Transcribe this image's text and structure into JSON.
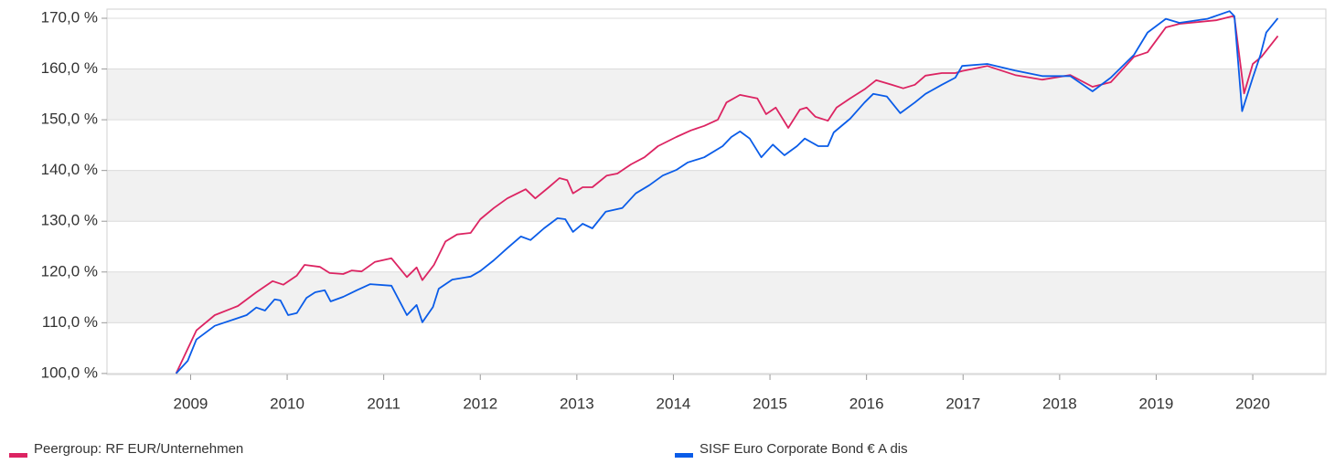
{
  "chart_data": {
    "type": "line",
    "xlim": [
      2008.134,
      2020.757
    ],
    "xticks": [
      2009,
      2010,
      2011,
      2012,
      2013,
      2014,
      2015,
      2016,
      2017,
      2018,
      2019,
      2020
    ],
    "ylim": [
      99.8,
      171.8
    ],
    "yticks": [
      {
        "value": 100,
        "label": "100,0 %"
      },
      {
        "value": 110,
        "label": "110,0 %"
      },
      {
        "value": 120,
        "label": "120,0 %"
      },
      {
        "value": 130,
        "label": "130,0 %"
      },
      {
        "value": 140,
        "label": "140,0 %"
      },
      {
        "value": 150,
        "label": "150,0 %"
      },
      {
        "value": 160,
        "label": "160,0 %"
      },
      {
        "value": 170,
        "label": "170,0 %"
      }
    ],
    "grid": "alternating",
    "legend": "bottom",
    "series": [
      {
        "name": "Peergroup: RF EUR/Unternehmen",
        "color": "#dc2462",
        "x": [
          2008.85,
          2009.06,
          2009.25,
          2009.49,
          2009.68,
          2009.85,
          2009.96,
          2010.1,
          2010.18,
          2010.34,
          2010.44,
          2010.58,
          2010.67,
          2010.77,
          2010.91,
          2011.08,
          2011.24,
          2011.34,
          2011.4,
          2011.52,
          2011.64,
          2011.76,
          2011.9,
          2012.0,
          2012.14,
          2012.28,
          2012.47,
          2012.57,
          2012.71,
          2012.82,
          2012.9,
          2012.96,
          2013.06,
          2013.16,
          2013.31,
          2013.42,
          2013.56,
          2013.7,
          2013.84,
          2014.03,
          2014.18,
          2014.32,
          2014.46,
          2014.55,
          2014.69,
          2014.87,
          2014.96,
          2015.06,
          2015.19,
          2015.31,
          2015.38,
          2015.47,
          2015.6,
          2015.69,
          2015.83,
          2015.98,
          2016.1,
          2016.26,
          2016.38,
          2016.5,
          2016.61,
          2016.78,
          2016.92,
          2016.99,
          2017.25,
          2017.54,
          2017.82,
          2018.11,
          2018.34,
          2018.53,
          2018.77,
          2018.91,
          2019.1,
          2019.24,
          2019.62,
          2019.79,
          2019.81,
          2019.91,
          2020.0,
          2020.09,
          2020.26
        ],
        "values": [
          100,
          108.5,
          111.5,
          113.3,
          116,
          118.2,
          117.5,
          119.3,
          121.4,
          121,
          119.8,
          119.6,
          120.3,
          120.1,
          122,
          122.7,
          119,
          120.9,
          118.4,
          121.4,
          126,
          127.4,
          127.7,
          130.4,
          132.6,
          134.5,
          136.3,
          134.5,
          136.7,
          138.5,
          138.1,
          135.5,
          136.7,
          136.7,
          139,
          139.4,
          141.2,
          142.6,
          144.8,
          146.6,
          147.9,
          148.8,
          150,
          153.4,
          154.9,
          154.2,
          151.1,
          152.4,
          148.4,
          152,
          152.4,
          150.6,
          149.8,
          152.4,
          154.2,
          156,
          157.8,
          156.9,
          156.2,
          156.9,
          158.7,
          159.2,
          159.2,
          159.6,
          160.6,
          158.8,
          157.9,
          158.8,
          156.5,
          157.4,
          162.4,
          163.3,
          168.2,
          168.9,
          169.6,
          170.4,
          170.2,
          155.2,
          161,
          162.4,
          166.5
        ]
      },
      {
        "name": "SISF Euro Corporate Bond € A dis",
        "color": "#0a5ce8",
        "x": [
          2008.85,
          2008.97,
          2009.06,
          2009.25,
          2009.44,
          2009.58,
          2009.68,
          2009.77,
          2009.87,
          2009.93,
          2010.01,
          2010.1,
          2010.2,
          2010.29,
          2010.39,
          2010.45,
          2010.58,
          2010.72,
          2010.86,
          2011.08,
          2011.24,
          2011.34,
          2011.4,
          2011.51,
          2011.57,
          2011.71,
          2011.9,
          2012.0,
          2012.14,
          2012.28,
          2012.42,
          2012.52,
          2012.66,
          2012.8,
          2012.88,
          2012.96,
          2013.06,
          2013.16,
          2013.3,
          2013.47,
          2013.61,
          2013.75,
          2013.89,
          2014.03,
          2014.15,
          2014.32,
          2014.51,
          2014.6,
          2014.69,
          2014.79,
          2014.91,
          2015.03,
          2015.15,
          2015.28,
          2015.36,
          2015.5,
          2015.6,
          2015.66,
          2015.83,
          2015.98,
          2016.07,
          2016.21,
          2016.35,
          2016.5,
          2016.61,
          2016.78,
          2016.92,
          2016.99,
          2017.25,
          2017.54,
          2017.82,
          2018.11,
          2018.34,
          2018.53,
          2018.77,
          2018.91,
          2019.1,
          2019.24,
          2019.53,
          2019.76,
          2019.81,
          2019.89,
          2020.0,
          2020.08,
          2020.14,
          2020.26
        ],
        "values": [
          100,
          102.5,
          106.7,
          109.4,
          110.6,
          111.5,
          113,
          112.4,
          114.6,
          114.4,
          111.5,
          111.9,
          114.9,
          116,
          116.4,
          114.2,
          115.1,
          116.4,
          117.6,
          117.3,
          111.5,
          113.5,
          110.1,
          113.1,
          116.7,
          118.5,
          119.1,
          120.2,
          122.3,
          124.7,
          127,
          126.3,
          128.6,
          130.6,
          130.4,
          127.9,
          129.5,
          128.6,
          131.9,
          132.6,
          135.5,
          137.1,
          139,
          140.1,
          141.6,
          142.6,
          144.8,
          146.6,
          147.7,
          146.3,
          142.6,
          145.1,
          143,
          144.8,
          146.3,
          144.8,
          144.8,
          147.5,
          150.2,
          153.4,
          155.1,
          154.6,
          151.3,
          153.4,
          155.1,
          156.9,
          158.3,
          160.6,
          161,
          159.7,
          158.6,
          158.6,
          155.6,
          158.3,
          162.8,
          167.2,
          169.9,
          169.1,
          169.9,
          171.4,
          170.4,
          151.7,
          158.3,
          162.8,
          167.2,
          170
        ]
      }
    ]
  }
}
